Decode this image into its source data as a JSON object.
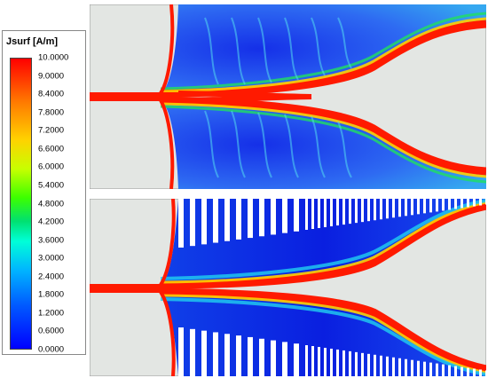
{
  "legend": {
    "title": "Jsurf [A/m]",
    "ticks": [
      "10.0000",
      "9.0000",
      "8.4000",
      "7.8000",
      "7.2000",
      "6.6000",
      "6.0000",
      "5.4000",
      "4.8000",
      "4.2000",
      "3.6000",
      "3.0000",
      "2.4000",
      "1.8000",
      "1.2000",
      "0.6000",
      "0.0000"
    ]
  },
  "colors": {
    "high": "#ff0000",
    "low": "#0000ff",
    "background": "#e3e6e3",
    "field": "#2a5cf0"
  },
  "panels": [
    {
      "name": "top-panel",
      "has_slots": false
    },
    {
      "name": "bottom-panel",
      "has_slots": true
    }
  ]
}
